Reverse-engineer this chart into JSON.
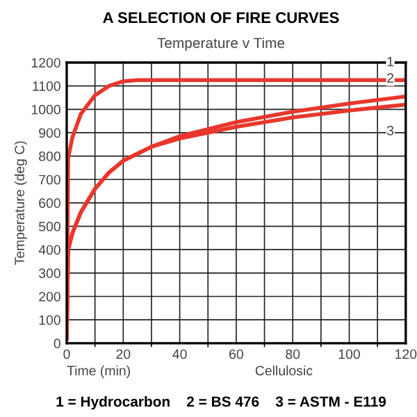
{
  "chart_data": {
    "type": "line",
    "title": "A SELECTION OF FIRE CURVES",
    "subtitle": "Temperature v Time",
    "xlabel": "Time (min)",
    "ylabel": "Temperature (deg C)",
    "series": [
      {
        "color": "#e8372c",
        "x": [
          0,
          0.5,
          2,
          5,
          10,
          15,
          20,
          25,
          120
        ],
        "values": [
          20,
          790,
          880,
          980,
          1060,
          1100,
          1120,
          1125,
          1125
        ]
      },
      {
        "color": "#e8372c",
        "x": [
          0,
          0.5,
          2,
          5,
          10,
          15,
          20,
          30,
          40,
          60,
          80,
          100,
          120
        ],
        "values": [
          20,
          400,
          470,
          560,
          660,
          730,
          780,
          840,
          885,
          945,
          990,
          1025,
          1055
        ]
      },
      {
        "color": "#e8372c",
        "x": [
          0,
          0.5,
          2,
          5,
          10,
          15,
          20,
          30,
          40,
          60,
          80,
          100,
          120
        ],
        "values": [
          20,
          400,
          470,
          560,
          660,
          730,
          780,
          840,
          875,
          925,
          965,
          995,
          1020
        ]
      }
    ],
    "xlim": [
      0,
      120
    ],
    "xticks": [
      0,
      20,
      40,
      60,
      80,
      100,
      120
    ],
    "ylim": [
      0,
      1200
    ],
    "yticks": [
      0,
      100,
      200,
      300,
      400,
      500,
      600,
      700,
      800,
      900,
      1000,
      1100,
      1200
    ],
    "grid": true,
    "line_style": "solid",
    "marker": "none",
    "annotations": [
      "1",
      "2",
      "3",
      "Cellulosic",
      "1 = Hydrocarbon    2 = BS 476    3 = ASTM - E119"
    ]
  }
}
